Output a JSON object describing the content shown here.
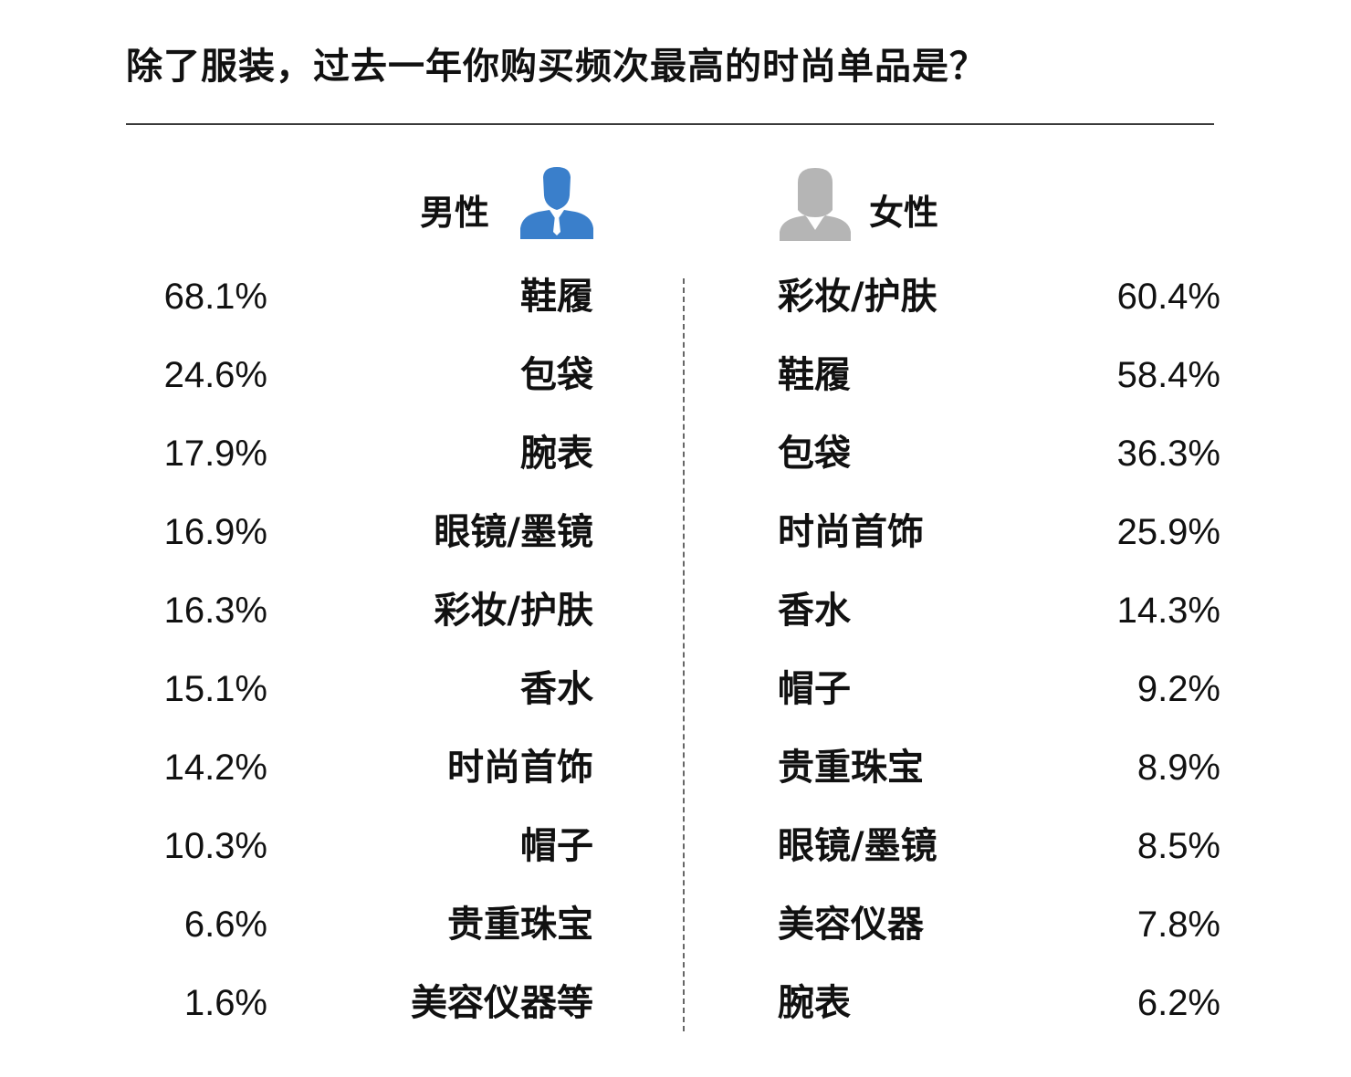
{
  "title": "除了服装，过去一年你购买频次最高的时尚单品是？",
  "male": {
    "label": "男性",
    "icon": "male-person-icon",
    "icon_color": "#3a7fcb"
  },
  "female": {
    "label": "女性",
    "icon": "female-person-icon",
    "icon_color": "#b5b5b5"
  },
  "chart_data": {
    "type": "table",
    "title": "除了服装，过去一年你购买频次最高的时尚单品是？",
    "columns": [
      "男性",
      "女性"
    ],
    "male": [
      {
        "item": "鞋履",
        "value": "68.1%"
      },
      {
        "item": "包袋",
        "value": "24.6%"
      },
      {
        "item": "腕表",
        "value": "17.9%"
      },
      {
        "item": "眼镜/墨镜",
        "value": "16.9%"
      },
      {
        "item": "彩妆/护肤",
        "value": "16.3%"
      },
      {
        "item": "香水",
        "value": "15.1%"
      },
      {
        "item": "时尚首饰",
        "value": "14.2%"
      },
      {
        "item": "帽子",
        "value": "10.3%"
      },
      {
        "item": "贵重珠宝",
        "value": "6.6%"
      },
      {
        "item": "美容仪器等",
        "value": "1.6%"
      }
    ],
    "female": [
      {
        "item": "彩妆/护肤",
        "value": "60.4%"
      },
      {
        "item": "鞋履",
        "value": "58.4%"
      },
      {
        "item": "包袋",
        "value": "36.3%"
      },
      {
        "item": "时尚首饰",
        "value": "25.9%"
      },
      {
        "item": "香水",
        "value": "14.3%"
      },
      {
        "item": "帽子",
        "value": "9.2%"
      },
      {
        "item": "贵重珠宝",
        "value": "8.9%"
      },
      {
        "item": "眼镜/墨镜",
        "value": "8.5%"
      },
      {
        "item": "美容仪器",
        "value": "7.8%"
      },
      {
        "item": "腕表",
        "value": "6.2%"
      }
    ]
  }
}
